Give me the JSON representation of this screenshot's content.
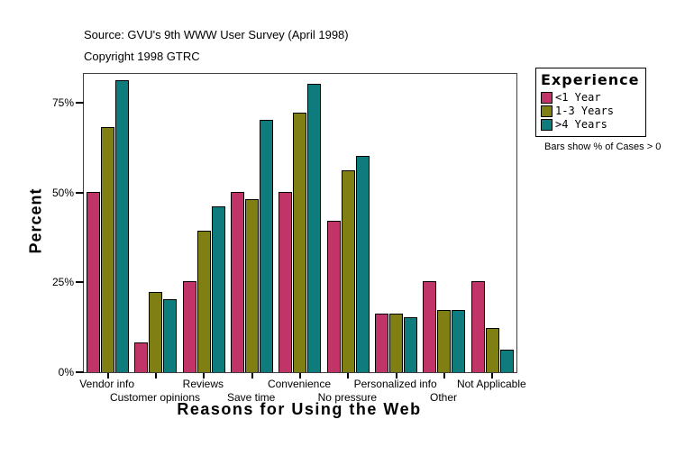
{
  "header": {
    "source_line": "Source: GVU's 9th WWW User Survey (April 1998)",
    "copyright_line": "Copyright 1998 GTRC"
  },
  "chart_data": {
    "type": "bar",
    "title": "Source: GVU's 9th WWW User Survey (April 1998)",
    "subtitle": "Copyright 1998 GTRC",
    "xlabel": "Reasons for Using the Web",
    "ylabel": "Percent",
    "categories": [
      "Vendor info",
      "Customer opinions",
      "Reviews",
      "Save time",
      "Convenience",
      "No pressure",
      "Personalized info",
      "Other",
      "Not Applicable"
    ],
    "series": [
      {
        "name": "<1 Year",
        "color": "#c03468",
        "values": [
          50,
          8,
          25,
          50,
          50,
          42,
          16,
          25,
          25
        ]
      },
      {
        "name": "1-3 Years",
        "color": "#7f7f14",
        "values": [
          68,
          22,
          39,
          48,
          72,
          56,
          16,
          17,
          12
        ]
      },
      {
        "name": ">4 Years",
        "color": "#0e7c7c",
        "values": [
          81,
          20,
          46,
          70,
          80,
          60,
          15,
          17,
          6
        ]
      }
    ],
    "ylim": [
      0,
      83
    ],
    "yticks": [
      {
        "label": "0%",
        "value": 0
      },
      {
        "label": "25%",
        "value": 25
      },
      {
        "label": "50%",
        "value": 50
      },
      {
        "label": "75%",
        "value": 75
      }
    ],
    "grid": false,
    "legend_title": "Experience",
    "legend_position": "right",
    "footnote": "Bars show % of Cases > 0",
    "frame_color": "#3f3f3f",
    "background": "#ffffff"
  }
}
